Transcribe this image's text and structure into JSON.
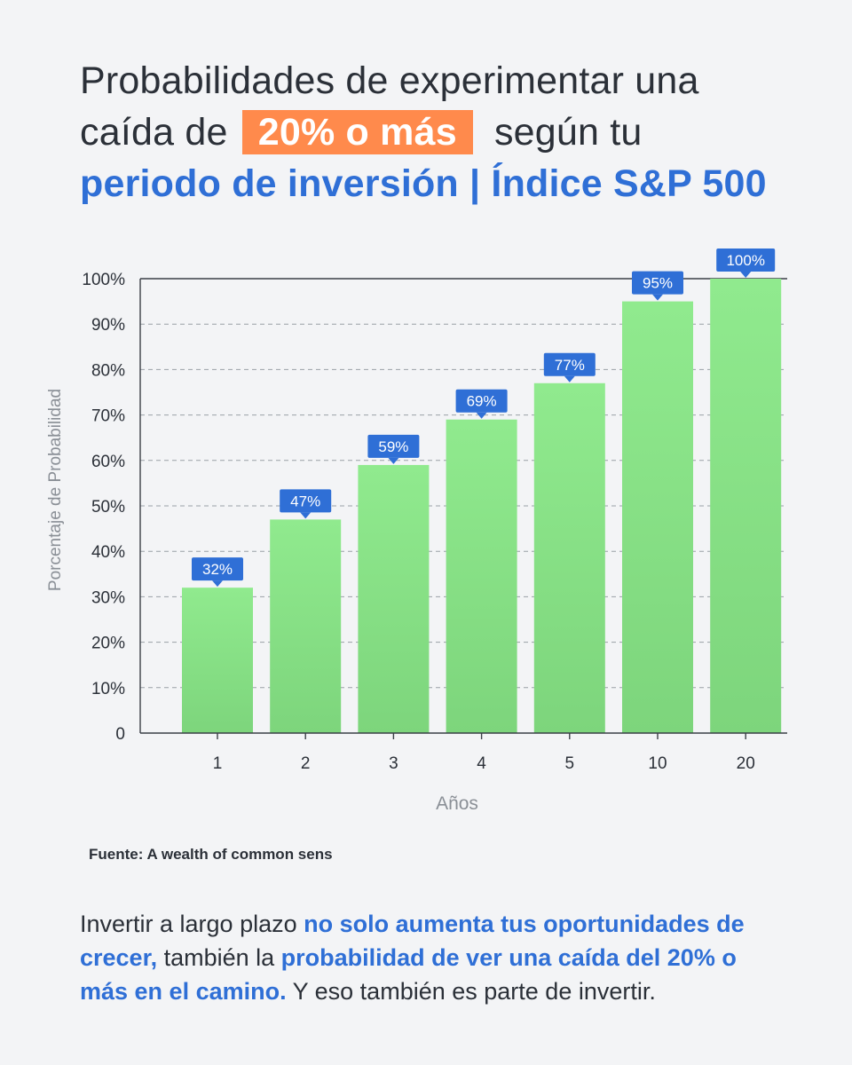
{
  "title": {
    "line1": "Probabilidades de experimentar una",
    "pre": "caída de",
    "highlight": "20% o más",
    "post": "según tu",
    "line3": "periodo de inversión | Índice S&P 500"
  },
  "chart_data": {
    "type": "bar",
    "categories": [
      "1",
      "2",
      "3",
      "4",
      "5",
      "10",
      "20"
    ],
    "values": [
      32,
      47,
      59,
      69,
      77,
      95,
      100
    ],
    "data_labels": [
      "32%",
      "47%",
      "59%",
      "69%",
      "77%",
      "95%",
      "100%"
    ],
    "xlabel": "Años",
    "ylabel": "Porcentaje de Probabilidad",
    "ylim": [
      0,
      100
    ],
    "yticks": [
      0,
      10,
      20,
      30,
      40,
      50,
      60,
      70,
      80,
      90,
      100
    ],
    "ytick_labels": [
      "0",
      "10%",
      "20%",
      "30%",
      "40%",
      "50%",
      "60%",
      "70%",
      "80%",
      "90%",
      "100%"
    ],
    "grid": "horizontal dashed",
    "colors": {
      "bar_top": "#90ea8e",
      "bar_bottom": "#7dd57c",
      "label_bg": "#2f6fd6",
      "label_text": "#ffffff"
    }
  },
  "source": "Fuente: A wealth of common sens",
  "footer": {
    "t1": "Invertir a largo plazo ",
    "b1": "no solo aumenta tus oportunidades de crecer,",
    "t2": " también la ",
    "b2": "probabilidad de ver una caída del 20% o más en el camino.",
    "t3": " Y eso también es parte de invertir."
  }
}
